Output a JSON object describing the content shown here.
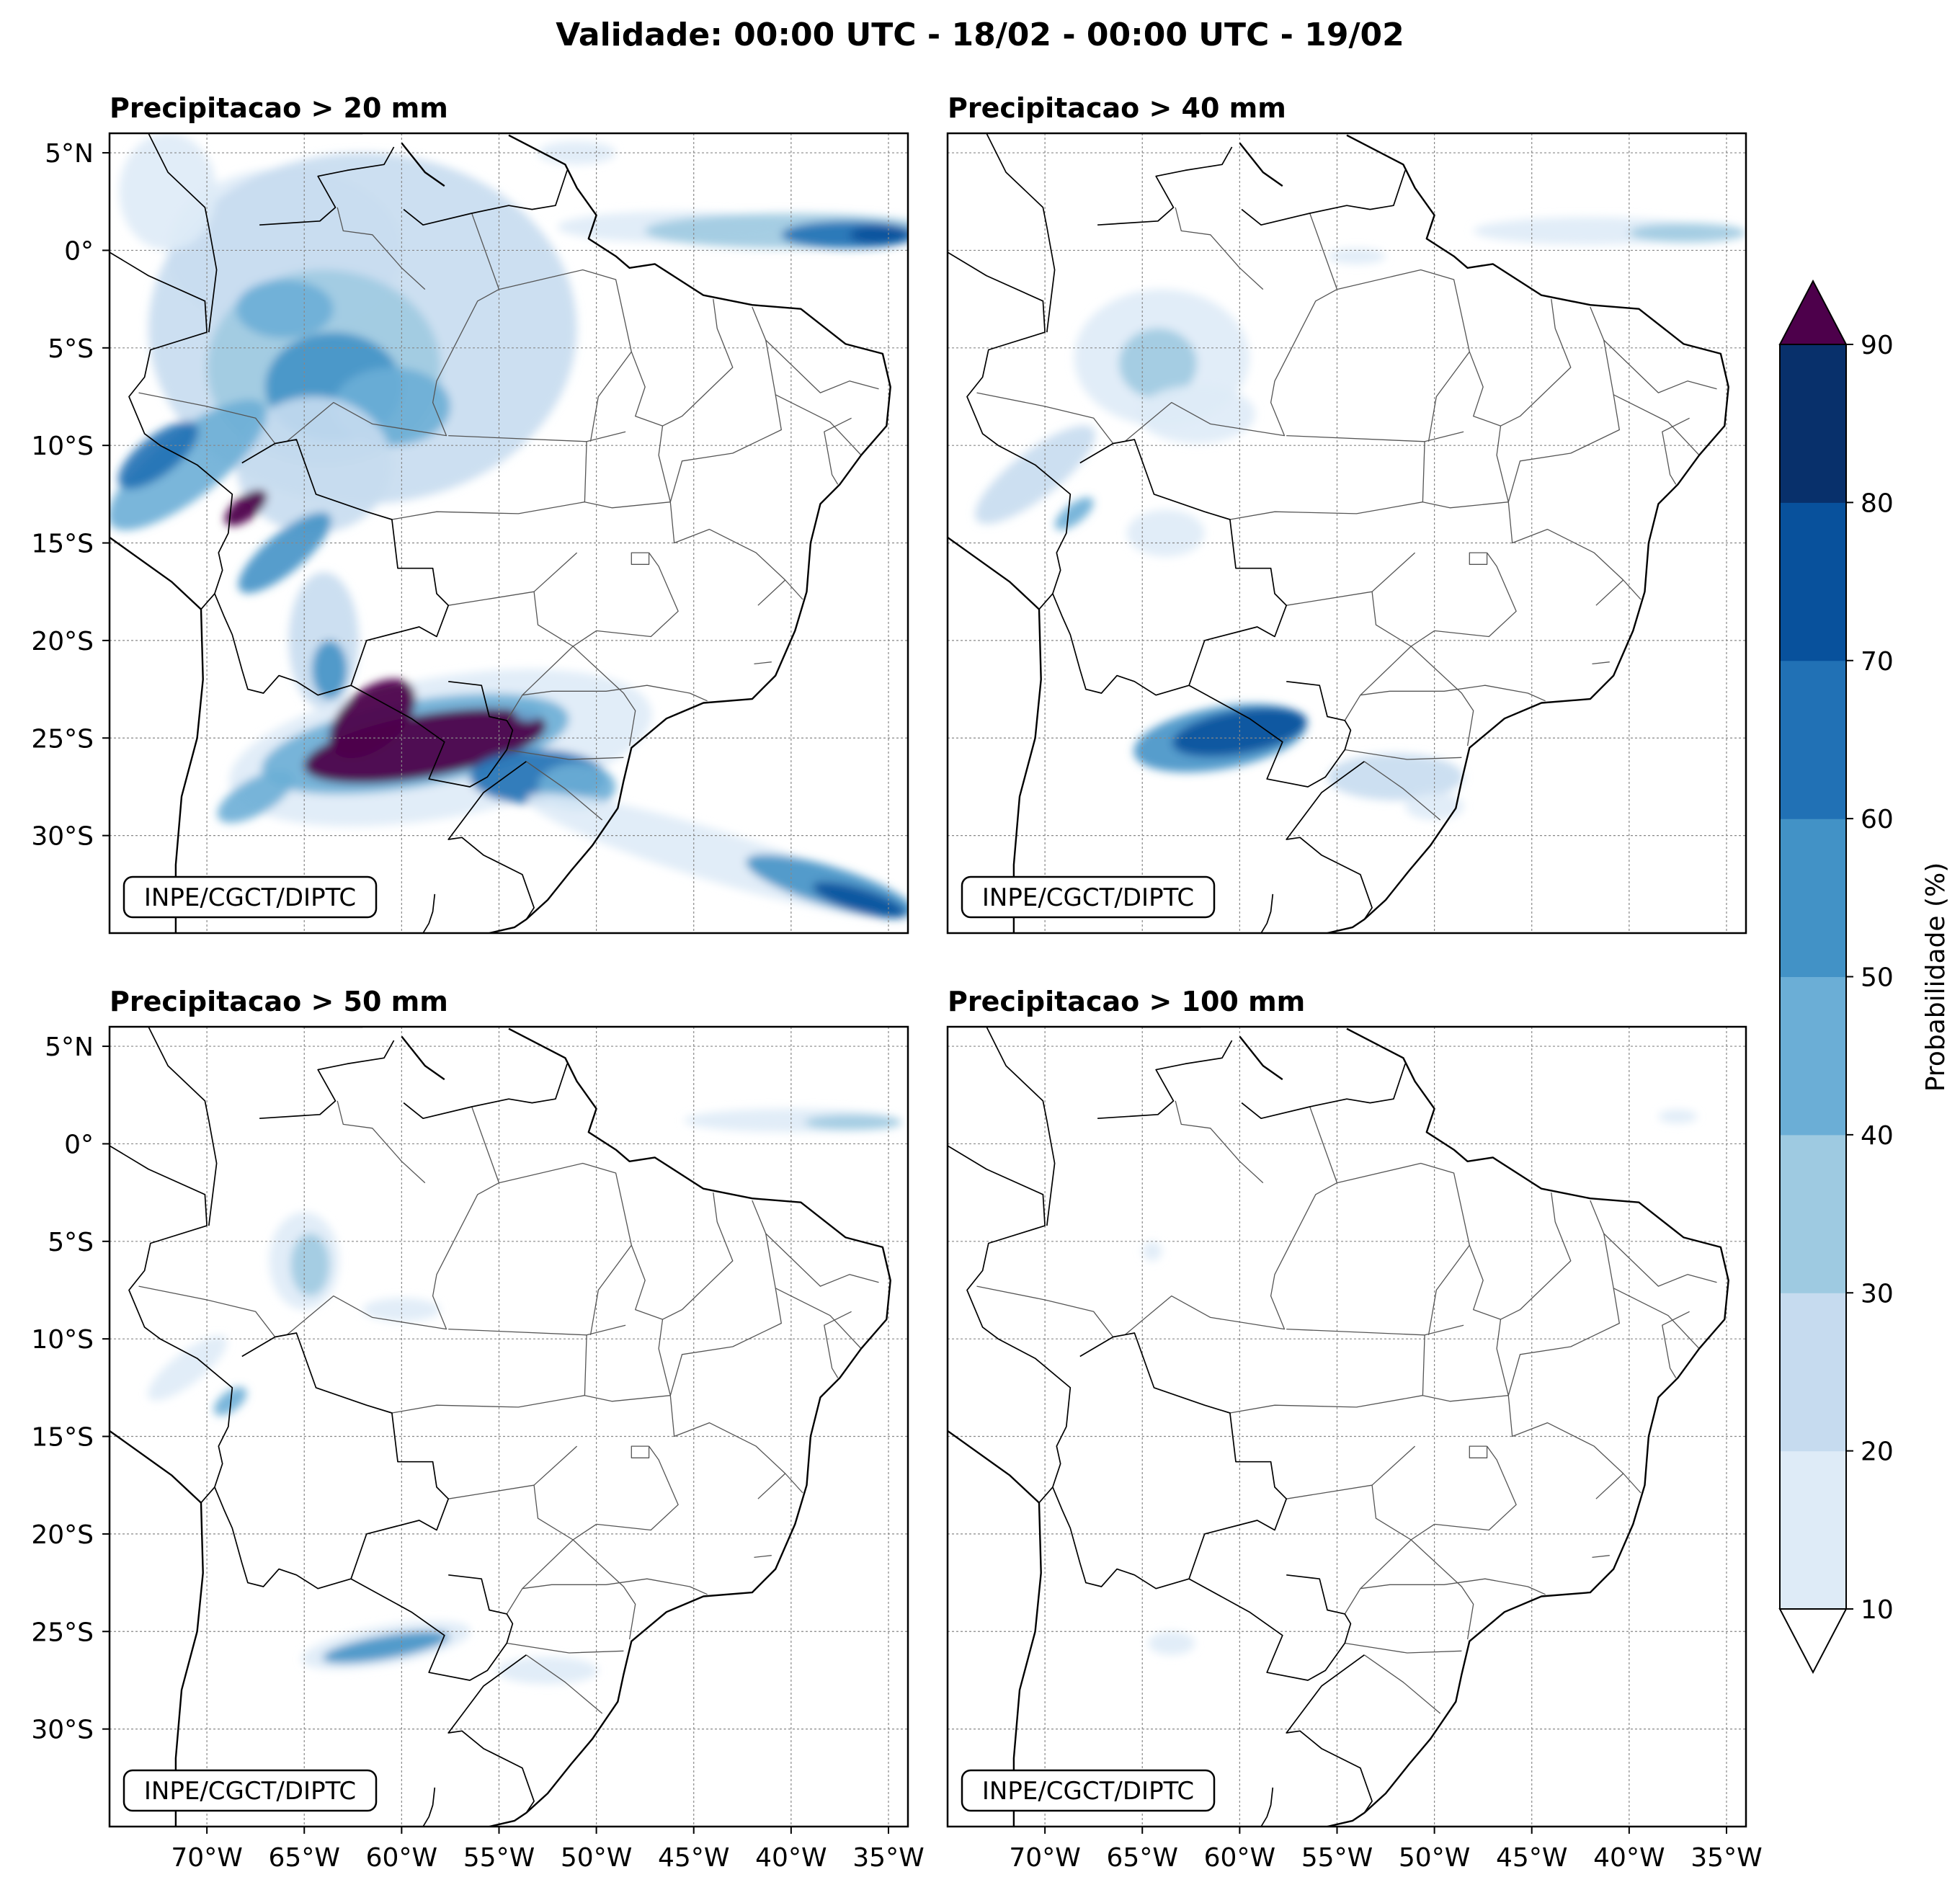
{
  "title": "Validade: 00:00 UTC - 18/02 - 00:00 UTC - 19/02",
  "panels": [
    {
      "title": "Precipitacao > 20 mm",
      "credit": "INPE/CGCT/DIPTC"
    },
    {
      "title": "Precipitacao > 40 mm",
      "credit": "INPE/CGCT/DIPTC"
    },
    {
      "title": "Precipitacao > 50 mm",
      "credit": "INPE/CGCT/DIPTC"
    },
    {
      "title": "Precipitacao > 100 mm",
      "credit": "INPE/CGCT/DIPTC"
    }
  ],
  "axes": {
    "lat_ticks": [
      "5°N",
      "0°",
      "5°S",
      "10°S",
      "15°S",
      "20°S",
      "25°S",
      "30°S"
    ],
    "lon_ticks": [
      "70°W",
      "65°W",
      "60°W",
      "55°W",
      "50°W",
      "45°W",
      "40°W",
      "35°W"
    ],
    "lat_values": [
      5,
      0,
      -5,
      -10,
      -15,
      -20,
      -25,
      -30
    ],
    "lon_values": [
      -70,
      -65,
      -60,
      -55,
      -50,
      -45,
      -40,
      -35
    ],
    "extent": {
      "lon_min": -75,
      "lon_max": -34,
      "lat_min": -35,
      "lat_max": 6
    }
  },
  "colorbar": {
    "label": "Probabilidade (%)",
    "ticks": [
      "10",
      "20",
      "30",
      "40",
      "50",
      "60",
      "70",
      "80",
      "90"
    ],
    "colors": [
      "#deebf7",
      "#c6dbef",
      "#9ecae1",
      "#6baed6",
      "#4292c6",
      "#2171b5",
      "#08519c",
      "#08306b"
    ],
    "over_color": "#4d004b",
    "under_color": "#ffffff"
  }
}
